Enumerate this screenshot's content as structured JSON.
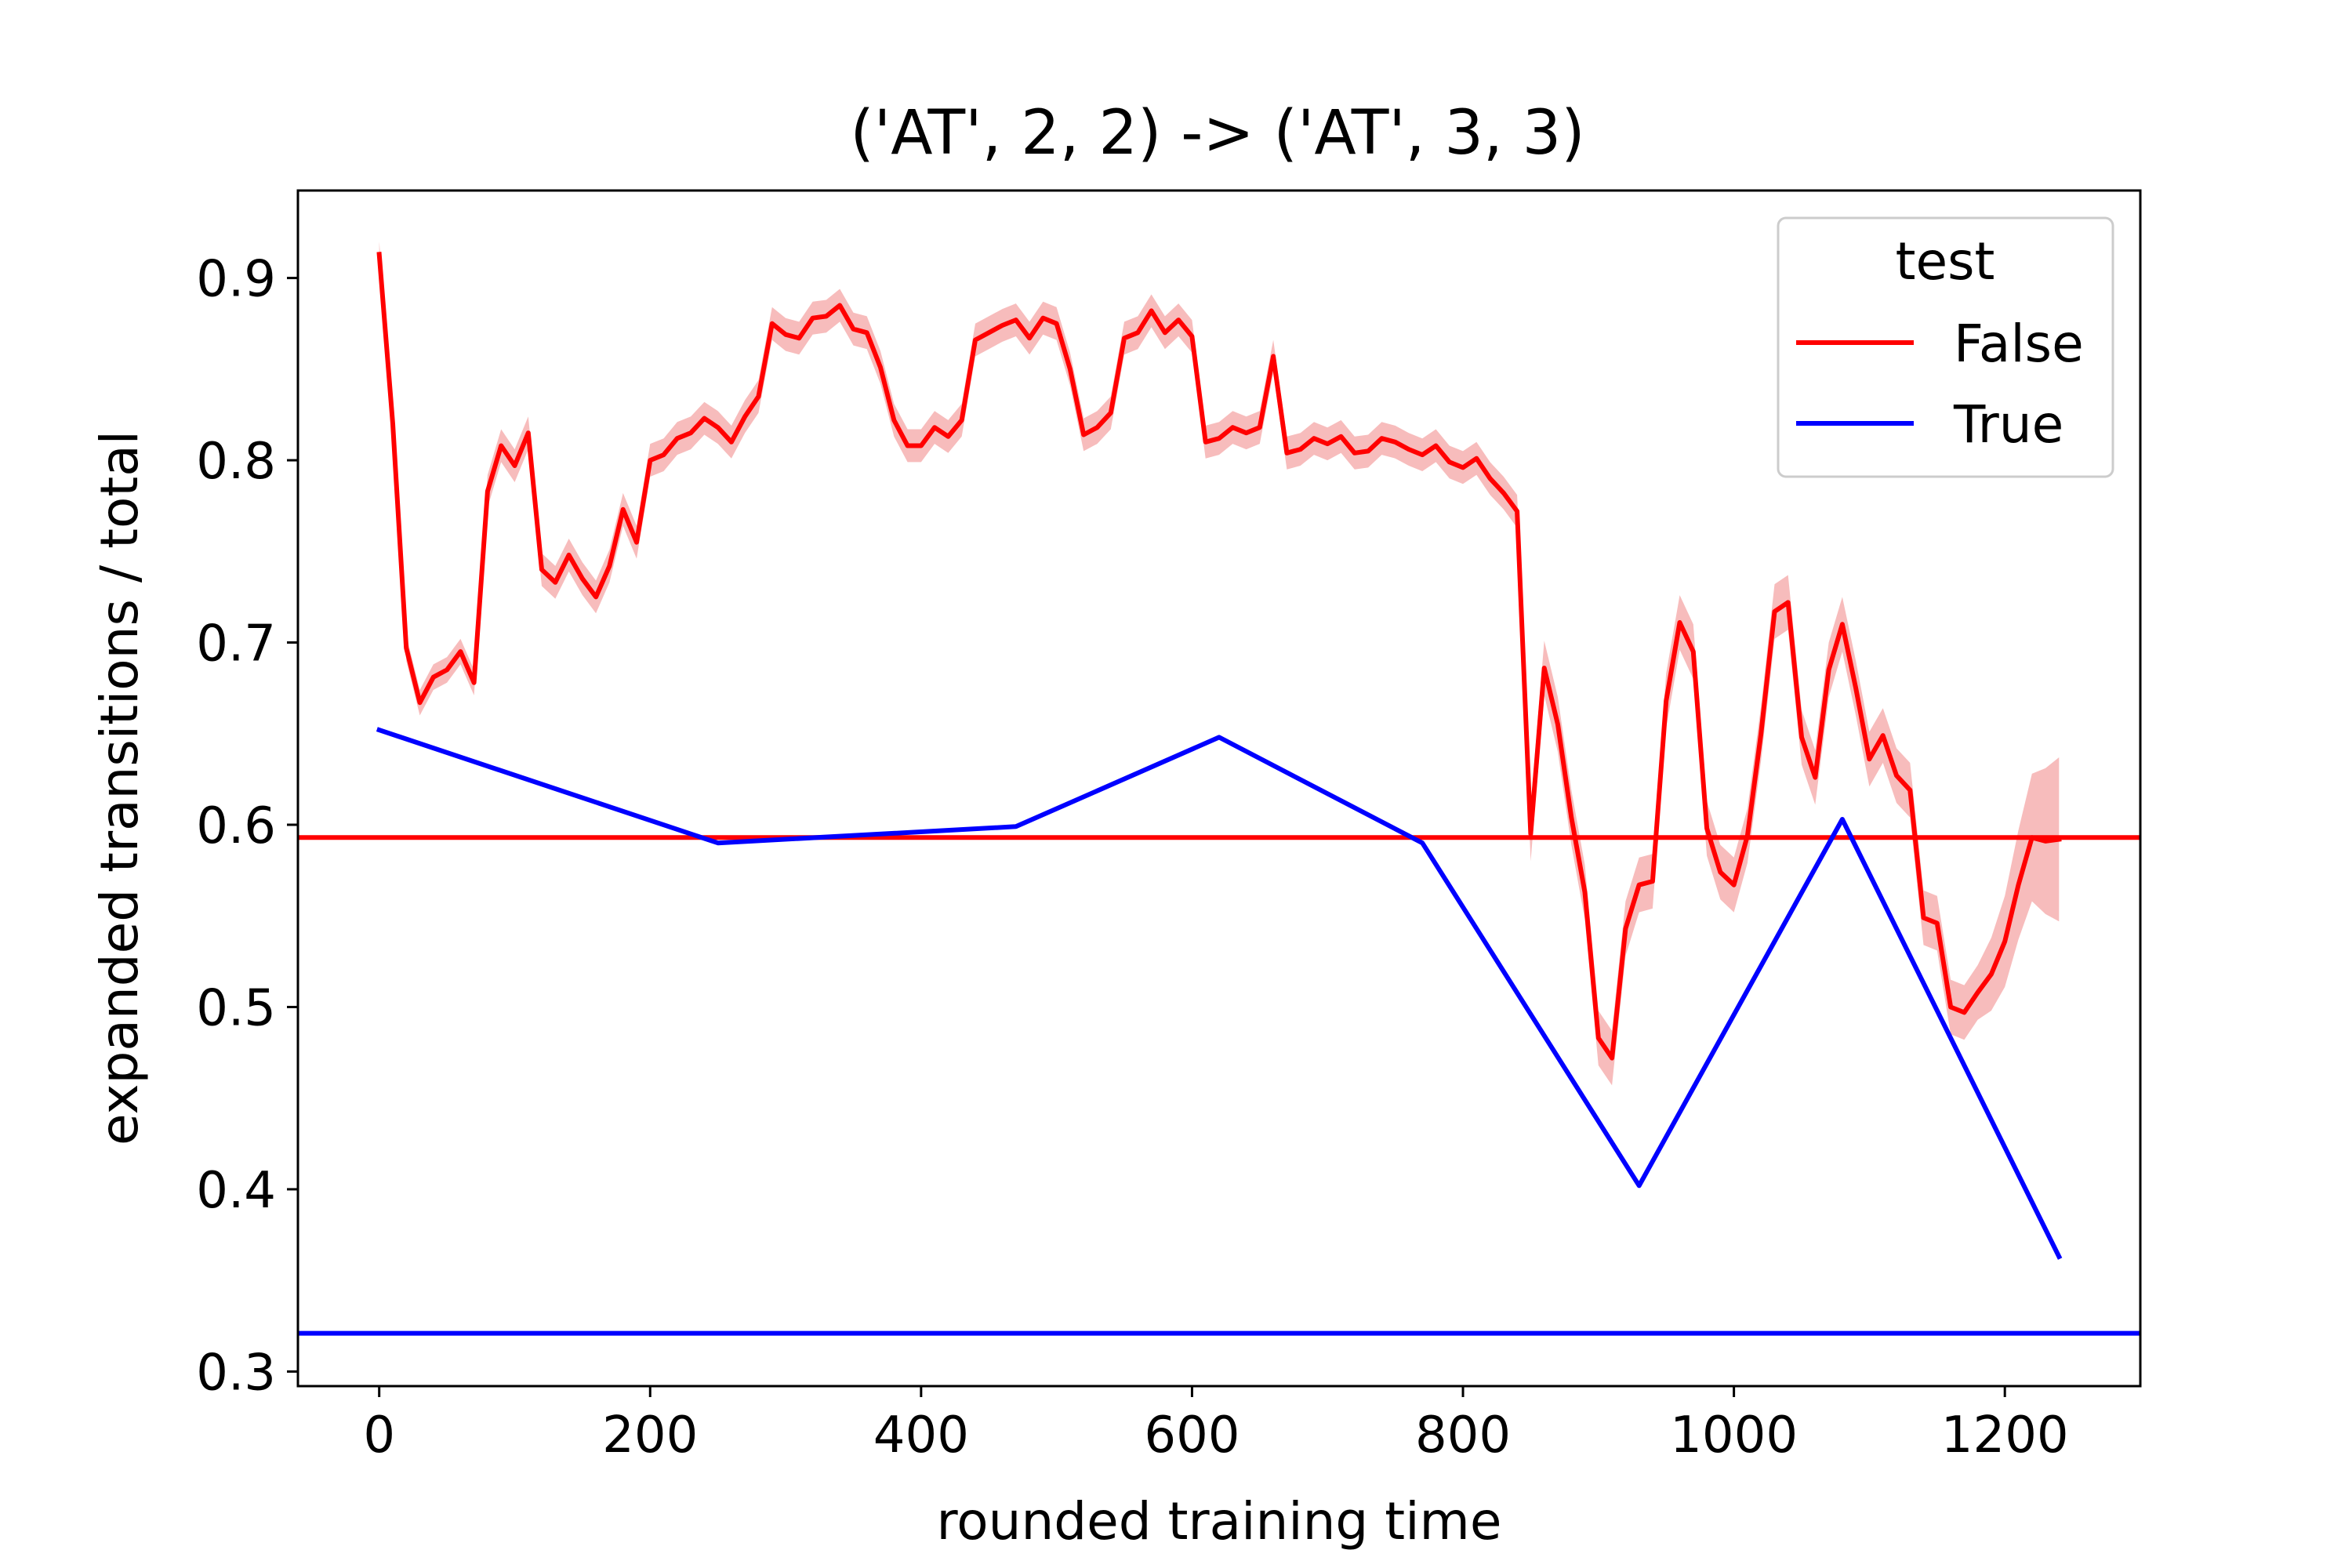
{
  "chart_data": {
    "type": "line",
    "title": "('AT', 2, 2) -> ('AT', 3, 3)",
    "xlabel": "rounded training time",
    "ylabel": "expanded transitions / total",
    "xlim": [
      -60,
      1300
    ],
    "ylim": [
      0.292,
      0.948
    ],
    "xticks": [
      0,
      200,
      400,
      600,
      800,
      1000,
      1200
    ],
    "xtick_labels": [
      "0",
      "200",
      "400",
      "600",
      "800",
      "1000",
      "1200"
    ],
    "yticks": [
      0.3,
      0.4,
      0.5,
      0.6,
      0.7,
      0.8,
      0.9
    ],
    "ytick_labels": [
      "0.3",
      "0.4",
      "0.5",
      "0.6",
      "0.7",
      "0.8",
      "0.9"
    ],
    "grid": false,
    "legend": {
      "title": "test",
      "placement": "top-right"
    },
    "series": [
      {
        "name": "False",
        "color": "#ff0000",
        "band_color": "#f4a6a6",
        "x": [
          0,
          10,
          20,
          30,
          40,
          50,
          60,
          70,
          80,
          90,
          100,
          110,
          120,
          130,
          140,
          150,
          160,
          170,
          180,
          190,
          200,
          210,
          220,
          230,
          240,
          250,
          260,
          270,
          280,
          290,
          300,
          310,
          320,
          330,
          340,
          350,
          360,
          370,
          380,
          390,
          400,
          410,
          420,
          430,
          440,
          450,
          460,
          470,
          480,
          490,
          500,
          510,
          520,
          530,
          540,
          550,
          560,
          570,
          580,
          590,
          600,
          610,
          620,
          630,
          640,
          650,
          660,
          670,
          680,
          690,
          700,
          710,
          720,
          730,
          740,
          750,
          760,
          770,
          780,
          790,
          800,
          810,
          820,
          830,
          840,
          850,
          860,
          870,
          880,
          890,
          900,
          910,
          920,
          930,
          940,
          950,
          960,
          970,
          980,
          990,
          1000,
          1010,
          1020,
          1030,
          1040,
          1050,
          1060,
          1070,
          1080,
          1090,
          1100,
          1110,
          1120,
          1130,
          1140,
          1150,
          1160,
          1170,
          1180,
          1190,
          1200,
          1210,
          1220,
          1230,
          1240
        ],
        "y": [
          0.913,
          0.82,
          0.697,
          0.667,
          0.681,
          0.685,
          0.695,
          0.678,
          0.783,
          0.808,
          0.797,
          0.815,
          0.74,
          0.733,
          0.748,
          0.735,
          0.725,
          0.742,
          0.773,
          0.755,
          0.8,
          0.803,
          0.812,
          0.815,
          0.823,
          0.818,
          0.81,
          0.824,
          0.835,
          0.875,
          0.869,
          0.867,
          0.878,
          0.879,
          0.885,
          0.872,
          0.87,
          0.851,
          0.822,
          0.808,
          0.808,
          0.818,
          0.813,
          0.822,
          0.866,
          0.87,
          0.874,
          0.877,
          0.867,
          0.878,
          0.875,
          0.85,
          0.814,
          0.818,
          0.826,
          0.867,
          0.87,
          0.882,
          0.87,
          0.877,
          0.868,
          0.81,
          0.812,
          0.818,
          0.815,
          0.818,
          0.857,
          0.804,
          0.806,
          0.812,
          0.809,
          0.813,
          0.804,
          0.805,
          0.812,
          0.81,
          0.806,
          0.803,
          0.808,
          0.799,
          0.796,
          0.801,
          0.79,
          0.782,
          0.772,
          0.595,
          0.686,
          0.655,
          0.604,
          0.563,
          0.483,
          0.472,
          0.543,
          0.567,
          0.569,
          0.668,
          0.711,
          0.695,
          0.598,
          0.574,
          0.567,
          0.594,
          0.65,
          0.717,
          0.722,
          0.648,
          0.626,
          0.685,
          0.71,
          0.675,
          0.636,
          0.649,
          0.627,
          0.619,
          0.549,
          0.546,
          0.5,
          0.497,
          0.508,
          0.518,
          0.536,
          0.567,
          0.593,
          0.591,
          0.592
        ],
        "band": [
          0.007,
          0.007,
          0.007,
          0.007,
          0.007,
          0.007,
          0.007,
          0.007,
          0.009,
          0.009,
          0.009,
          0.009,
          0.009,
          0.009,
          0.009,
          0.009,
          0.009,
          0.009,
          0.009,
          0.009,
          0.009,
          0.009,
          0.009,
          0.009,
          0.009,
          0.009,
          0.009,
          0.009,
          0.009,
          0.009,
          0.009,
          0.009,
          0.009,
          0.009,
          0.009,
          0.009,
          0.009,
          0.009,
          0.009,
          0.009,
          0.009,
          0.009,
          0.009,
          0.009,
          0.009,
          0.009,
          0.009,
          0.009,
          0.009,
          0.009,
          0.009,
          0.009,
          0.009,
          0.009,
          0.009,
          0.009,
          0.009,
          0.009,
          0.009,
          0.009,
          0.009,
          0.009,
          0.009,
          0.009,
          0.009,
          0.009,
          0.009,
          0.009,
          0.009,
          0.009,
          0.009,
          0.009,
          0.009,
          0.009,
          0.009,
          0.009,
          0.009,
          0.009,
          0.009,
          0.009,
          0.009,
          0.009,
          0.009,
          0.009,
          0.009,
          0.015,
          0.015,
          0.015,
          0.015,
          0.015,
          0.015,
          0.015,
          0.015,
          0.015,
          0.015,
          0.015,
          0.015,
          0.015,
          0.015,
          0.015,
          0.015,
          0.015,
          0.015,
          0.015,
          0.015,
          0.015,
          0.015,
          0.015,
          0.015,
          0.015,
          0.015,
          0.015,
          0.015,
          0.015,
          0.015,
          0.015,
          0.015,
          0.015,
          0.015,
          0.02,
          0.025,
          0.03,
          0.035,
          0.04,
          0.045
        ]
      },
      {
        "name": "True",
        "color": "#0000ff",
        "x": [
          0,
          250,
          470,
          620,
          770,
          930,
          1080,
          1240
        ],
        "y": [
          0.652,
          0.59,
          0.599,
          0.648,
          0.59,
          0.402,
          0.603,
          0.363
        ]
      }
    ],
    "reference_lines": [
      {
        "series": "False",
        "color": "#ff0000",
        "y": 0.593
      },
      {
        "series": "True",
        "color": "#0000ff",
        "y": 0.321
      }
    ]
  }
}
